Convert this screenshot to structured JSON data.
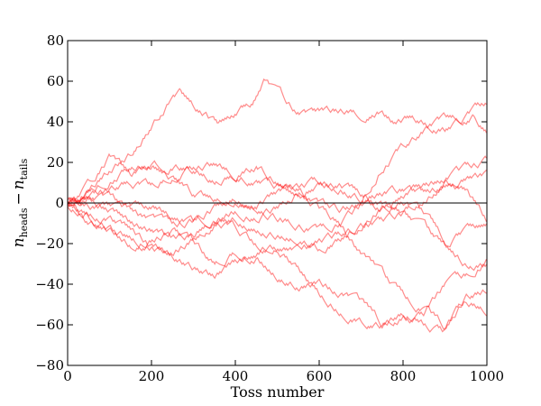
{
  "chart_data": {
    "type": "line",
    "title": "",
    "xlabel": "Toss number",
    "ylabel": {
      "var": "n",
      "sub1": "heads",
      "minus": "−",
      "sub2": "tails"
    },
    "xlim": [
      0,
      1000
    ],
    "ylim": [
      -80,
      80
    ],
    "x_ticks": [
      0,
      200,
      400,
      600,
      800,
      1000
    ],
    "y_ticks": [
      -80,
      -60,
      -40,
      -20,
      0,
      20,
      40,
      60,
      80
    ],
    "x_tick_labels": [
      "0",
      "200",
      "400",
      "600",
      "800",
      "1000"
    ],
    "y_tick_labels": [
      "−80",
      "−60",
      "−40",
      "−20",
      "0",
      "20",
      "40",
      "60",
      "80"
    ],
    "grid": false,
    "reference_line": {
      "y": 0,
      "color": "#000000"
    },
    "series_color": "#ff0000",
    "series_opacity": 0.45,
    "series": [
      {
        "anchors": [
          [
            0,
            0
          ],
          [
            50,
            6
          ],
          [
            100,
            16
          ],
          [
            150,
            24
          ],
          [
            200,
            38
          ],
          [
            240,
            49
          ],
          [
            270,
            53
          ],
          [
            300,
            48
          ],
          [
            330,
            44
          ],
          [
            360,
            38
          ],
          [
            400,
            44
          ],
          [
            440,
            49
          ],
          [
            470,
            60
          ],
          [
            500,
            53
          ],
          [
            540,
            46
          ],
          [
            580,
            43
          ],
          [
            620,
            44
          ],
          [
            660,
            45
          ],
          [
            700,
            44
          ],
          [
            740,
            46
          ],
          [
            780,
            40
          ],
          [
            820,
            42
          ],
          [
            860,
            39
          ],
          [
            900,
            37
          ],
          [
            940,
            40
          ],
          [
            970,
            43
          ],
          [
            1000,
            36
          ]
        ]
      },
      {
        "anchors": [
          [
            0,
            -2
          ],
          [
            50,
            8
          ],
          [
            100,
            22
          ],
          [
            150,
            14
          ],
          [
            200,
            18
          ],
          [
            250,
            19
          ],
          [
            300,
            17
          ],
          [
            350,
            12
          ],
          [
            400,
            14
          ],
          [
            450,
            18
          ],
          [
            500,
            11
          ],
          [
            550,
            3
          ],
          [
            600,
            -2
          ],
          [
            650,
            -4
          ],
          [
            700,
            0
          ],
          [
            750,
            18
          ],
          [
            800,
            27
          ],
          [
            850,
            35
          ],
          [
            900,
            40
          ],
          [
            950,
            43
          ],
          [
            1000,
            49
          ]
        ]
      },
      {
        "anchors": [
          [
            0,
            1
          ],
          [
            50,
            2
          ],
          [
            100,
            6
          ],
          [
            150,
            10
          ],
          [
            200,
            8
          ],
          [
            250,
            14
          ],
          [
            300,
            17
          ],
          [
            350,
            19
          ],
          [
            400,
            15
          ],
          [
            450,
            11
          ],
          [
            500,
            8
          ],
          [
            550,
            8
          ],
          [
            600,
            -2
          ],
          [
            650,
            -10
          ],
          [
            700,
            -25
          ],
          [
            750,
            -36
          ],
          [
            800,
            -46
          ],
          [
            850,
            -52
          ],
          [
            900,
            -61
          ],
          [
            950,
            -48
          ],
          [
            1000,
            -52
          ]
        ]
      },
      {
        "anchors": [
          [
            0,
            0
          ],
          [
            50,
            -6
          ],
          [
            100,
            -12
          ],
          [
            150,
            -20
          ],
          [
            200,
            -18
          ],
          [
            250,
            -14
          ],
          [
            300,
            -20
          ],
          [
            350,
            -30
          ],
          [
            400,
            -24
          ],
          [
            450,
            -25
          ],
          [
            500,
            -20
          ],
          [
            550,
            -32
          ],
          [
            600,
            -44
          ],
          [
            650,
            -52
          ],
          [
            700,
            -58
          ],
          [
            750,
            -60
          ],
          [
            800,
            -55
          ],
          [
            850,
            -60
          ],
          [
            900,
            -64
          ],
          [
            950,
            -48
          ],
          [
            1000,
            -43
          ]
        ]
      },
      {
        "anchors": [
          [
            0,
            -1
          ],
          [
            50,
            -10
          ],
          [
            100,
            -14
          ],
          [
            150,
            -17
          ],
          [
            200,
            -21
          ],
          [
            250,
            -26
          ],
          [
            300,
            -32
          ],
          [
            350,
            -36
          ],
          [
            400,
            -30
          ],
          [
            450,
            -27
          ],
          [
            500,
            -35
          ],
          [
            550,
            -40
          ],
          [
            600,
            -40
          ],
          [
            650,
            -44
          ],
          [
            700,
            -50
          ],
          [
            750,
            -60
          ],
          [
            800,
            -56
          ],
          [
            850,
            -55
          ],
          [
            900,
            -41
          ],
          [
            950,
            -37
          ],
          [
            1000,
            -28
          ]
        ]
      },
      {
        "anchors": [
          [
            0,
            2
          ],
          [
            50,
            0
          ],
          [
            100,
            -2
          ],
          [
            150,
            -6
          ],
          [
            200,
            -10
          ],
          [
            250,
            -12
          ],
          [
            300,
            -9
          ],
          [
            350,
            -8
          ],
          [
            400,
            -4
          ],
          [
            450,
            -6
          ],
          [
            500,
            -3
          ],
          [
            550,
            5
          ],
          [
            600,
            8
          ],
          [
            650,
            9
          ],
          [
            700,
            4
          ],
          [
            750,
            -1
          ],
          [
            800,
            -7
          ],
          [
            850,
            -14
          ],
          [
            900,
            -22
          ],
          [
            950,
            -30
          ],
          [
            1000,
            -30
          ]
        ]
      },
      {
        "anchors": [
          [
            0,
            0
          ],
          [
            50,
            3
          ],
          [
            100,
            1
          ],
          [
            150,
            -4
          ],
          [
            200,
            -2
          ],
          [
            250,
            -6
          ],
          [
            300,
            -10
          ],
          [
            350,
            -3
          ],
          [
            400,
            2
          ],
          [
            450,
            0
          ],
          [
            500,
            -6
          ],
          [
            550,
            -10
          ],
          [
            600,
            -14
          ],
          [
            650,
            -10
          ],
          [
            700,
            -2
          ],
          [
            750,
            -3
          ],
          [
            800,
            0
          ],
          [
            850,
            -6
          ],
          [
            900,
            -18
          ],
          [
            950,
            -14
          ],
          [
            1000,
            -11
          ]
        ]
      },
      {
        "anchors": [
          [
            0,
            1
          ],
          [
            50,
            6
          ],
          [
            100,
            12
          ],
          [
            150,
            18
          ],
          [
            200,
            20
          ],
          [
            250,
            12
          ],
          [
            300,
            4
          ],
          [
            350,
            2
          ],
          [
            400,
            4
          ],
          [
            450,
            0
          ],
          [
            500,
            4
          ],
          [
            550,
            6
          ],
          [
            600,
            10
          ],
          [
            650,
            8
          ],
          [
            700,
            3
          ],
          [
            750,
            5
          ],
          [
            800,
            6
          ],
          [
            850,
            4
          ],
          [
            900,
            8
          ],
          [
            950,
            12
          ],
          [
            1000,
            13
          ]
        ]
      },
      {
        "anchors": [
          [
            0,
            -1
          ],
          [
            50,
            -4
          ],
          [
            100,
            -8
          ],
          [
            150,
            -14
          ],
          [
            200,
            -22
          ],
          [
            250,
            -24
          ],
          [
            300,
            -18
          ],
          [
            350,
            -10
          ],
          [
            400,
            -8
          ],
          [
            450,
            -12
          ],
          [
            500,
            -15
          ],
          [
            550,
            -16
          ],
          [
            600,
            -22
          ],
          [
            650,
            -18
          ],
          [
            700,
            -10
          ],
          [
            750,
            -2
          ],
          [
            800,
            4
          ],
          [
            850,
            8
          ],
          [
            900,
            12
          ],
          [
            950,
            16
          ],
          [
            1000,
            20
          ]
        ]
      },
      {
        "anchors": [
          [
            0,
            0
          ],
          [
            50,
            -2
          ],
          [
            100,
            -4
          ],
          [
            150,
            -10
          ],
          [
            200,
            -14
          ],
          [
            250,
            -18
          ],
          [
            300,
            -16
          ],
          [
            350,
            -8
          ],
          [
            400,
            -12
          ],
          [
            450,
            -20
          ],
          [
            500,
            -22
          ],
          [
            550,
            -24
          ],
          [
            600,
            -20
          ],
          [
            650,
            -16
          ],
          [
            700,
            -12
          ],
          [
            750,
            -10
          ],
          [
            800,
            -6
          ],
          [
            850,
            2
          ],
          [
            900,
            10
          ],
          [
            950,
            6
          ],
          [
            1000,
            -8
          ]
        ]
      }
    ]
  }
}
